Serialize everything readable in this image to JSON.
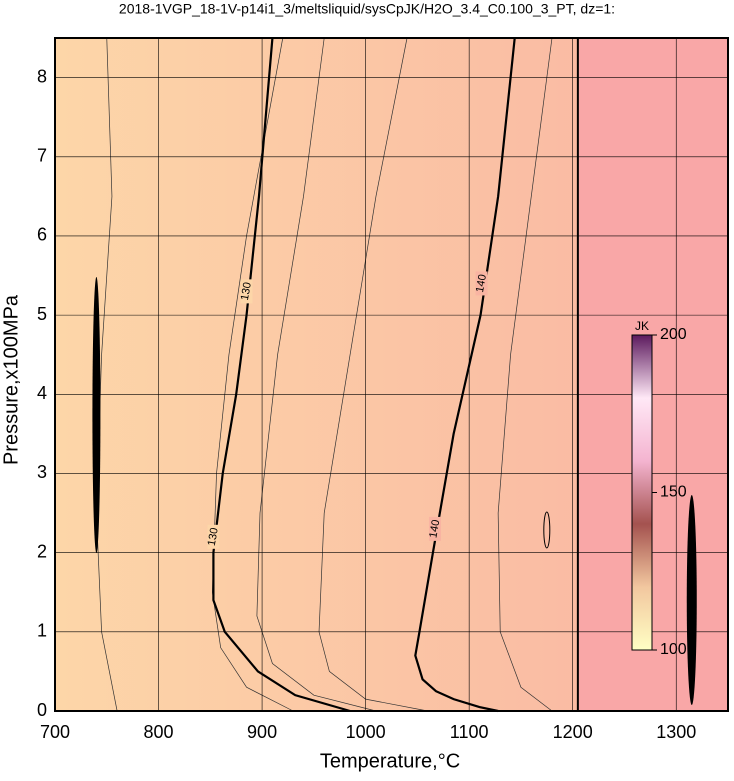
{
  "chart_data": {
    "type": "contour",
    "title": "2018-1VGP_18-1V-p14i1_3/meltsliquid/sysCpJK/H2O_3.4_C0.100_3_PT, dz=1:",
    "xlabel": "Temperature,°C",
    "ylabel": "Pressure,x100MPa",
    "xlim": [
      700,
      1350
    ],
    "ylim": [
      0,
      8.5
    ],
    "xticks": [
      700,
      800,
      900,
      1000,
      1100,
      1200,
      1300
    ],
    "yticks": [
      0,
      1,
      2,
      3,
      4,
      5,
      6,
      7,
      8
    ],
    "grid": true,
    "background_colors": [
      "#fdd6a8",
      "#f9b4a2"
    ],
    "right_region": {
      "x": 1205,
      "color": "#f9a7a7"
    },
    "contours": [
      {
        "level": 130,
        "x": [
          985,
          932,
          896,
          864,
          853,
          853,
          862,
          875,
          885,
          897,
          910
        ],
        "y": [
          0,
          0.2,
          0.5,
          1.0,
          1.4,
          2.0,
          3.0,
          4.0,
          5.0,
          6.5,
          8.5
        ],
        "label_at": [
          {
            "x": 853,
            "y": 2.2
          },
          {
            "x": 885,
            "y": 5.3
          }
        ]
      },
      {
        "level": 140,
        "x": [
          1128,
          1110,
          1085,
          1068,
          1055,
          1048,
          1052,
          1065,
          1085,
          1111,
          1128,
          1144
        ],
        "y": [
          0,
          0.05,
          0.15,
          0.25,
          0.4,
          0.7,
          1.0,
          2.0,
          3.5,
          5.0,
          6.5,
          8.5
        ],
        "label_at": [
          {
            "x": 1067,
            "y": 2.3
          },
          {
            "x": 1112,
            "y": 5.4
          }
        ]
      }
    ],
    "thin_contours": [
      {
        "x": [
          930,
          885,
          860,
          852,
          856,
          868,
          885,
          920
        ],
        "y": [
          0,
          0.3,
          0.8,
          1.5,
          3.0,
          4.5,
          6.0,
          8.5
        ]
      },
      {
        "x": [
          1010,
          950,
          910,
          895,
          898,
          915,
          940,
          960
        ],
        "y": [
          0,
          0.2,
          0.6,
          1.2,
          2.5,
          4.5,
          6.5,
          8.5
        ]
      },
      {
        "x": [
          1060,
          1000,
          965,
          955,
          960,
          985,
          1010,
          1040
        ],
        "y": [
          0,
          0.15,
          0.5,
          1.0,
          2.5,
          4.5,
          6.5,
          8.5
        ]
      },
      {
        "x": [
          1180,
          1150,
          1130,
          1128,
          1140,
          1160,
          1180
        ],
        "y": [
          0,
          0.3,
          1.0,
          2.5,
          4.5,
          6.5,
          8.5
        ]
      },
      {
        "x": [
          760,
          745,
          740,
          745,
          755,
          750
        ],
        "y": [
          0,
          1.0,
          2.5,
          4.5,
          6.5,
          8.5
        ]
      }
    ],
    "colorbar": {
      "label": "JK",
      "range": [
        100,
        200
      ],
      "ticks": [
        100,
        150,
        200
      ],
      "colors": [
        "#ffffc4",
        "#f2c79f",
        "#a4524f",
        "#f4b4d0",
        "#ffe8f6",
        "#5c1a5e"
      ]
    }
  }
}
